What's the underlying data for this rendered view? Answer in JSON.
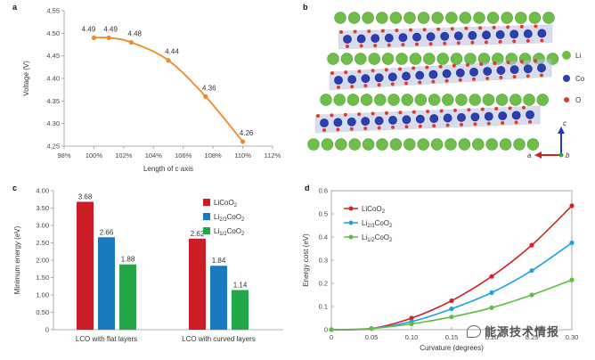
{
  "panels": {
    "a": "a",
    "b": "b",
    "c": "c",
    "d": "d"
  },
  "colors": {
    "orange": "#ee8a2a",
    "licoo2": "#cc1c26",
    "li23": "#1b79c2",
    "li12": "#22a849",
    "d_licoo2": "#d8202c",
    "d_li23": "#1ea2e0",
    "d_li12": "#5dbe42",
    "li_atom": "#6fbe4a",
    "co_atom": "#2b3fb0",
    "o_atom": "#e03a2a",
    "polyhedra": "#b8c2e0"
  },
  "crystal": {
    "legend": [
      {
        "label": "Li",
        "color": "#6fbe4a"
      },
      {
        "label": "Co",
        "color": "#2b3fb0"
      },
      {
        "label": "O",
        "color": "#e03a2a"
      }
    ],
    "axes": {
      "a": "a",
      "b": "b",
      "c": "c"
    }
  },
  "watermark": "能源技术情报",
  "chart_data": [
    {
      "type": "line",
      "panel": "a",
      "x": [
        100,
        101,
        102.5,
        105,
        107.5,
        110
      ],
      "y": [
        4.49,
        4.49,
        4.48,
        4.44,
        4.36,
        4.26
      ],
      "point_labels": [
        "4.49",
        "4.49",
        "4.48",
        "4.44",
        "4.36",
        "4.26"
      ],
      "xlabel": "Length of c axis",
      "ylabel": "Voltage (V)",
      "xlim": [
        98,
        112
      ],
      "ylim": [
        4.25,
        4.55
      ],
      "xticks": [
        "98%",
        "100%",
        "102%",
        "104%",
        "106%",
        "108%",
        "110%",
        "112%"
      ],
      "yticks": [
        "4.25",
        "4.30",
        "4.35",
        "4.40",
        "4.45",
        "4.50",
        "4.55"
      ],
      "color": "#ee8a2a"
    },
    {
      "type": "bar",
      "panel": "c",
      "categories": [
        "LCO with flat layers",
        "LCO with curved layers"
      ],
      "series": [
        {
          "name": "LiCoO2",
          "name_main": "LiCoO",
          "name_sub": "2",
          "name_tail": "",
          "values": [
            3.68,
            2.62
          ],
          "labels": [
            "3.68",
            "2.62"
          ],
          "color": "#cc1c26"
        },
        {
          "name": "Li2/3CoO2",
          "name_main": "Li",
          "name_sub": "2/3",
          "name_tail": "CoO",
          "name_sub2": "2",
          "values": [
            2.66,
            1.84
          ],
          "labels": [
            "2.66",
            "1.84"
          ],
          "color": "#1b79c2"
        },
        {
          "name": "Li1/2CoO2",
          "name_main": "Li",
          "name_sub": "1/2",
          "name_tail": "CoO",
          "name_sub2": "2",
          "values": [
            1.88,
            1.14
          ],
          "labels": [
            "1.88",
            "1.14"
          ],
          "color": "#22a849"
        }
      ],
      "ylabel": "Minimum energy (eV)",
      "ylim": [
        0,
        4.0
      ],
      "yticks": [
        "0",
        "0.50",
        "1.00",
        "1.50",
        "2.00",
        "2.50",
        "3.00",
        "3.50",
        "4.00"
      ]
    },
    {
      "type": "line",
      "panel": "d",
      "series": [
        {
          "name": "LiCoO2",
          "name_main": "LiCoO",
          "name_sub": "2",
          "name_tail": "",
          "x": [
            0,
            0.05,
            0.1,
            0.15,
            0.2,
            0.25,
            0.3
          ],
          "values": [
            0,
            0.005,
            0.05,
            0.125,
            0.23,
            0.365,
            0.535
          ],
          "color": "#d8202c"
        },
        {
          "name": "Li2/3CoO2",
          "name_main": "Li",
          "name_sub": "2/3",
          "name_tail": "CoO",
          "name_sub2": "2",
          "x": [
            0,
            0.05,
            0.1,
            0.15,
            0.2,
            0.25,
            0.3
          ],
          "values": [
            0,
            0.005,
            0.035,
            0.09,
            0.16,
            0.255,
            0.375
          ],
          "color": "#1ea2e0"
        },
        {
          "name": "Li1/2CoO2",
          "name_main": "Li",
          "name_sub": "1/2",
          "name_tail": "CoO",
          "name_sub2": "2",
          "x": [
            0,
            0.05,
            0.1,
            0.15,
            0.2,
            0.25,
            0.3
          ],
          "values": [
            0,
            0.005,
            0.025,
            0.055,
            0.095,
            0.15,
            0.215
          ],
          "color": "#5dbe42"
        }
      ],
      "xlabel": "Curvature (degrees)",
      "ylabel": "Energy cost (eV)",
      "xlim": [
        0,
        0.3
      ],
      "ylim": [
        0,
        0.6
      ],
      "xticks": [
        "0",
        "0.05",
        "0.10",
        "0.15",
        "0.20",
        "0.25",
        "0.30"
      ],
      "yticks": [
        "0",
        "0.1",
        "0.2",
        "0.3",
        "0.4",
        "0.5",
        "0.6"
      ]
    }
  ]
}
